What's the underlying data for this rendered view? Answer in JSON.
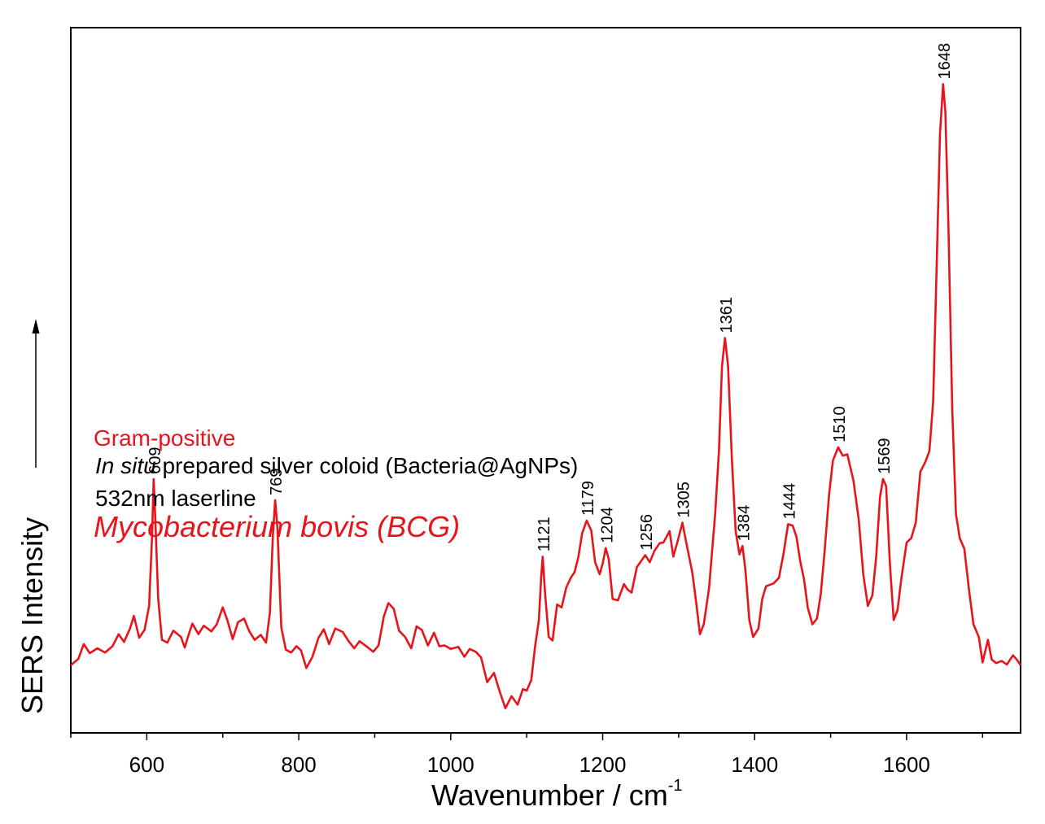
{
  "chart_data": {
    "type": "line",
    "title": "",
    "xlabel": "Wavenumber / cm",
    "xlabel_superscript": "-1",
    "ylabel": "SERS Intensity",
    "xlim": [
      500,
      1750
    ],
    "ylim": [
      0,
      100
    ],
    "x_ticks": [
      600,
      800,
      1000,
      1200,
      1400,
      1600
    ],
    "grid": false,
    "legend": "none",
    "y_axis_arrow": true,
    "annotations": [
      {
        "text": "Gram-positive",
        "color": "#e8141c"
      },
      {
        "text_italic": "In situ",
        "text": " prepared silver coloid (Bacteria@AgNPs)",
        "color": "#000000"
      },
      {
        "text": "532nm laserline",
        "color": "#000000"
      },
      {
        "text": "Mycobacterium bovis (BCG)",
        "color": "#e8141c",
        "italic": true
      }
    ],
    "peak_labels": [
      {
        "label": "609",
        "x": 609
      },
      {
        "label": "769",
        "x": 769
      },
      {
        "label": "1121",
        "x": 1121
      },
      {
        "label": "1179",
        "x": 1179
      },
      {
        "label": "1204",
        "x": 1204
      },
      {
        "label": "1256",
        "x": 1256
      },
      {
        "label": "1305",
        "x": 1305
      },
      {
        "label": "1361",
        "x": 1361
      },
      {
        "label": "1384",
        "x": 1384
      },
      {
        "label": "1444",
        "x": 1444
      },
      {
        "label": "1510",
        "x": 1510
      },
      {
        "label": "1569",
        "x": 1569
      },
      {
        "label": "1648",
        "x": 1648
      }
    ],
    "series": [
      {
        "color": "#e8141c",
        "points": [
          [
            500,
            9.6
          ],
          [
            510,
            10.5
          ],
          [
            517,
            12.6
          ],
          [
            525,
            11.3
          ],
          [
            535,
            12.0
          ],
          [
            545,
            11.4
          ],
          [
            555,
            12.3
          ],
          [
            563,
            14.0
          ],
          [
            570,
            12.9
          ],
          [
            578,
            14.8
          ],
          [
            583,
            16.6
          ],
          [
            590,
            13.5
          ],
          [
            597,
            14.6
          ],
          [
            603,
            18.0
          ],
          [
            607,
            28.0
          ],
          [
            609,
            36.0
          ],
          [
            611,
            31.0
          ],
          [
            615,
            19.0
          ],
          [
            620,
            13.2
          ],
          [
            627,
            12.8
          ],
          [
            635,
            14.5
          ],
          [
            645,
            13.6
          ],
          [
            650,
            12.1
          ],
          [
            655,
            13.9
          ],
          [
            660,
            15.5
          ],
          [
            668,
            14.0
          ],
          [
            675,
            15.2
          ],
          [
            685,
            14.4
          ],
          [
            692,
            15.4
          ],
          [
            700,
            17.8
          ],
          [
            706,
            16.0
          ],
          [
            713,
            13.3
          ],
          [
            720,
            15.7
          ],
          [
            728,
            16.2
          ],
          [
            735,
            14.4
          ],
          [
            742,
            13.2
          ],
          [
            750,
            13.9
          ],
          [
            757,
            12.8
          ],
          [
            762,
            17.0
          ],
          [
            766,
            28.0
          ],
          [
            769,
            33.0
          ],
          [
            772,
            29.0
          ],
          [
            777,
            15.0
          ],
          [
            783,
            11.8
          ],
          [
            790,
            11.4
          ],
          [
            797,
            12.3
          ],
          [
            803,
            11.7
          ],
          [
            810,
            9.2
          ],
          [
            818,
            10.8
          ],
          [
            826,
            13.5
          ],
          [
            833,
            14.7
          ],
          [
            840,
            12.6
          ],
          [
            848,
            14.8
          ],
          [
            858,
            14.3
          ],
          [
            865,
            13.1
          ],
          [
            873,
            12.0
          ],
          [
            880,
            13.0
          ],
          [
            890,
            12.2
          ],
          [
            898,
            11.5
          ],
          [
            905,
            12.4
          ],
          [
            912,
            16.5
          ],
          [
            918,
            18.4
          ],
          [
            925,
            17.6
          ],
          [
            932,
            14.5
          ],
          [
            940,
            13.6
          ],
          [
            948,
            12.0
          ],
          [
            955,
            15.1
          ],
          [
            962,
            14.6
          ],
          [
            970,
            12.4
          ],
          [
            978,
            14.2
          ],
          [
            985,
            12.3
          ],
          [
            992,
            12.4
          ],
          [
            1000,
            11.9
          ],
          [
            1010,
            12.2
          ],
          [
            1018,
            10.8
          ],
          [
            1025,
            11.9
          ],
          [
            1033,
            11.5
          ],
          [
            1040,
            10.7
          ],
          [
            1048,
            7.2
          ],
          [
            1057,
            8.5
          ],
          [
            1064,
            6.0
          ],
          [
            1072,
            3.5
          ],
          [
            1080,
            5.2
          ],
          [
            1088,
            4.0
          ],
          [
            1095,
            6.2
          ],
          [
            1100,
            6.0
          ],
          [
            1106,
            7.5
          ],
          [
            1111,
            12.2
          ],
          [
            1116,
            16.0
          ],
          [
            1119,
            22.0
          ],
          [
            1121,
            25.0
          ],
          [
            1124,
            20.0
          ],
          [
            1129,
            13.6
          ],
          [
            1134,
            13.1
          ],
          [
            1140,
            18.2
          ],
          [
            1146,
            17.8
          ],
          [
            1152,
            20.6
          ],
          [
            1158,
            22.0
          ],
          [
            1163,
            22.8
          ],
          [
            1168,
            24.9
          ],
          [
            1173,
            28.3
          ],
          [
            1179,
            30.1
          ],
          [
            1185,
            28.7
          ],
          [
            1190,
            24.2
          ],
          [
            1196,
            22.5
          ],
          [
            1200,
            24.0
          ],
          [
            1204,
            26.2
          ],
          [
            1208,
            24.6
          ],
          [
            1213,
            19.0
          ],
          [
            1220,
            18.8
          ],
          [
            1228,
            21.1
          ],
          [
            1233,
            20.3
          ],
          [
            1238,
            19.9
          ],
          [
            1245,
            23.5
          ],
          [
            1256,
            25.2
          ],
          [
            1262,
            24.2
          ],
          [
            1268,
            25.8
          ],
          [
            1275,
            26.9
          ],
          [
            1280,
            27.0
          ],
          [
            1288,
            28.6
          ],
          [
            1293,
            25.0
          ],
          [
            1299,
            27.3
          ],
          [
            1305,
            29.8
          ],
          [
            1310,
            27.0
          ],
          [
            1318,
            22.7
          ],
          [
            1323,
            18.5
          ],
          [
            1328,
            14.0
          ],
          [
            1333,
            15.4
          ],
          [
            1340,
            20.5
          ],
          [
            1348,
            31.0
          ],
          [
            1353,
            40.0
          ],
          [
            1357,
            52.0
          ],
          [
            1361,
            56.0
          ],
          [
            1365,
            52.0
          ],
          [
            1370,
            39.0
          ],
          [
            1375,
            28.6
          ],
          [
            1380,
            25.3
          ],
          [
            1384,
            26.5
          ],
          [
            1388,
            23.0
          ],
          [
            1393,
            16.0
          ],
          [
            1398,
            13.6
          ],
          [
            1405,
            14.8
          ],
          [
            1410,
            19.0
          ],
          [
            1415,
            20.8
          ],
          [
            1425,
            21.2
          ],
          [
            1432,
            22.0
          ],
          [
            1438,
            25.4
          ],
          [
            1444,
            29.6
          ],
          [
            1450,
            29.4
          ],
          [
            1455,
            27.8
          ],
          [
            1460,
            24.3
          ],
          [
            1465,
            21.8
          ],
          [
            1470,
            17.7
          ],
          [
            1476,
            15.4
          ],
          [
            1482,
            16.2
          ],
          [
            1487,
            19.7
          ],
          [
            1492,
            25.6
          ],
          [
            1498,
            33.8
          ],
          [
            1503,
            38.6
          ],
          [
            1510,
            40.5
          ],
          [
            1516,
            39.3
          ],
          [
            1522,
            39.5
          ],
          [
            1530,
            35.8
          ],
          [
            1537,
            30.3
          ],
          [
            1543,
            22.5
          ],
          [
            1549,
            18.0
          ],
          [
            1555,
            19.5
          ],
          [
            1560,
            25.0
          ],
          [
            1565,
            33.5
          ],
          [
            1569,
            36.0
          ],
          [
            1573,
            35.0
          ],
          [
            1578,
            24.0
          ],
          [
            1583,
            16.0
          ],
          [
            1588,
            17.4
          ],
          [
            1593,
            21.8
          ],
          [
            1600,
            27.0
          ],
          [
            1606,
            27.6
          ],
          [
            1612,
            29.8
          ],
          [
            1618,
            37.0
          ],
          [
            1625,
            38.5
          ],
          [
            1630,
            40.0
          ],
          [
            1635,
            47.0
          ],
          [
            1640,
            68.0
          ],
          [
            1644,
            85.0
          ],
          [
            1648,
            92.0
          ],
          [
            1651,
            88.0
          ],
          [
            1655,
            72.0
          ],
          [
            1660,
            46.0
          ],
          [
            1665,
            31.0
          ],
          [
            1670,
            27.6
          ],
          [
            1676,
            26.1
          ],
          [
            1682,
            20.4
          ],
          [
            1688,
            15.4
          ],
          [
            1695,
            13.6
          ],
          [
            1700,
            10.0
          ],
          [
            1707,
            13.2
          ],
          [
            1712,
            10.4
          ],
          [
            1718,
            9.9
          ],
          [
            1725,
            10.2
          ],
          [
            1732,
            9.7
          ],
          [
            1740,
            11.0
          ],
          [
            1745,
            10.4
          ],
          [
            1750,
            9.6
          ]
        ]
      }
    ]
  }
}
